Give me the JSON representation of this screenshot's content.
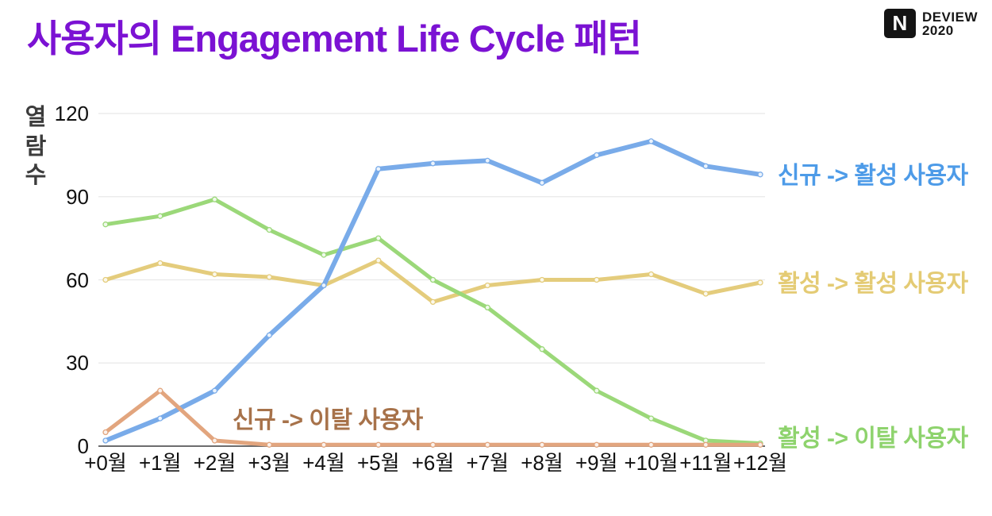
{
  "header": {
    "title": "사용자의 Engagement Life Cycle 패턴",
    "logo": {
      "n": "N",
      "line1": "DEVIEW",
      "line2": "2020"
    }
  },
  "chart_data": {
    "type": "line",
    "title": "",
    "xlabel": "",
    "ylabel": "열람수",
    "ylim": [
      0,
      120
    ],
    "yticks": [
      0,
      30,
      60,
      90,
      120
    ],
    "grid": true,
    "legend_position": "inline-right",
    "categories": [
      "+0월",
      "+1월",
      "+2월",
      "+3월",
      "+4월",
      "+5월",
      "+6월",
      "+7월",
      "+8월",
      "+9월",
      "+10월",
      "+11월",
      "+12월"
    ],
    "series": [
      {
        "name": "신규 -> 활성 사용자",
        "color": "#79abe9",
        "label_color": "#4d9be8",
        "values": [
          2,
          10,
          20,
          40,
          58,
          100,
          102,
          103,
          95,
          105,
          110,
          101,
          98
        ]
      },
      {
        "name": "활성 -> 활성 사용자",
        "color": "#e4cc7c",
        "label_color": "#e4cb74",
        "values": [
          60,
          66,
          62,
          61,
          58,
          67,
          52,
          58,
          60,
          60,
          62,
          55,
          59
        ]
      },
      {
        "name": "활성 -> 이탈 사용자",
        "color": "#9bd879",
        "label_color": "#8ed36d",
        "values": [
          80,
          83,
          89,
          78,
          69,
          75,
          60,
          50,
          35,
          20,
          10,
          2,
          1
        ]
      },
      {
        "name": "신규 -> 이탈 사용자",
        "color": "#e2a57e",
        "label_color": "#a7724a",
        "values": [
          5,
          20,
          2,
          0.5,
          0.5,
          0.5,
          0.5,
          0.5,
          0.5,
          0.5,
          0.5,
          0.5,
          0.5
        ]
      }
    ],
    "colors": {
      "grid": "#e8e8e8",
      "axis": "#58585a",
      "title": "#7b12d3"
    }
  }
}
